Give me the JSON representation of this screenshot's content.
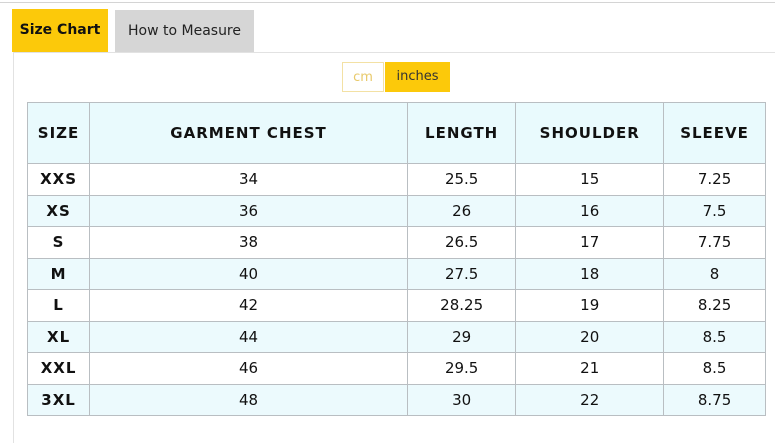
{
  "tabs": [
    {
      "label": "Size Chart",
      "active": true
    },
    {
      "label": "How to Measure",
      "active": false
    }
  ],
  "units": {
    "cm": "cm",
    "inches": "inches",
    "selected": "inches"
  },
  "colors": {
    "accent": "#fcc90a",
    "row_alt": "#ecfafd"
  },
  "table": {
    "headers": [
      "SIZE",
      "GARMENT CHEST",
      "LENGTH",
      "SHOULDER",
      "SLEEVE"
    ],
    "rows": [
      [
        "XXS",
        "34",
        "25.5",
        "15",
        "7.25"
      ],
      [
        "XS",
        "36",
        "26",
        "16",
        "7.5"
      ],
      [
        "S",
        "38",
        "26.5",
        "17",
        "7.75"
      ],
      [
        "M",
        "40",
        "27.5",
        "18",
        "8"
      ],
      [
        "L",
        "42",
        "28.25",
        "19",
        "8.25"
      ],
      [
        "XL",
        "44",
        "29",
        "20",
        "8.5"
      ],
      [
        "XXL",
        "46",
        "29.5",
        "21",
        "8.5"
      ],
      [
        "3XL",
        "48",
        "30",
        "22",
        "8.75"
      ]
    ]
  }
}
